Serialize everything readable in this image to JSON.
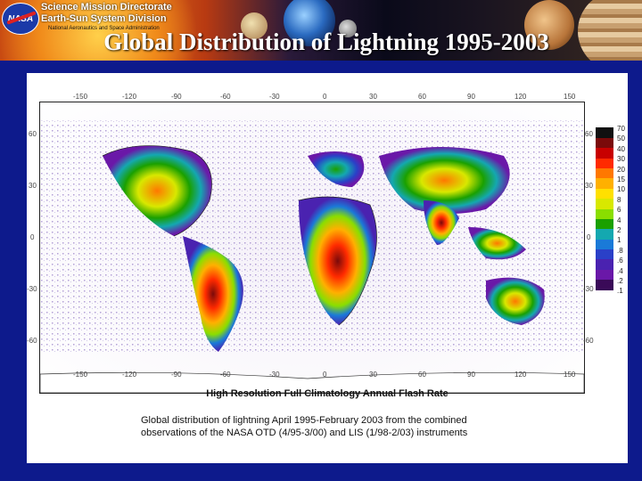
{
  "header": {
    "directorate": "Science Mission Directorate",
    "division": "Earth-Sun System Division",
    "agency": "National Aeronautics and Space Administration",
    "logo_text": "NASA",
    "title": "Global Distribution of Lightning 1995-2003"
  },
  "map": {
    "x_ticks_top": [
      "-150",
      "-120",
      "-90",
      "-60",
      "-30",
      "0",
      "30",
      "60",
      "90",
      "120",
      "150"
    ],
    "x_ticks_bottom": [
      "-150",
      "-120",
      "-90",
      "-60",
      "-30",
      "0",
      "30",
      "60",
      "90",
      "120",
      "150"
    ],
    "y_ticks_left": [
      "60",
      "30",
      "0",
      "-30",
      "-60"
    ],
    "y_ticks_right": [
      "60",
      "30",
      "0",
      "-30",
      "-60"
    ],
    "colorbar_labels": [
      "70",
      "50",
      "40",
      "30",
      "20",
      "15",
      "10",
      "8",
      "6",
      "4",
      "2",
      "1",
      ".8",
      ".6",
      ".4",
      ".2",
      ".1"
    ],
    "colorbar_colors": [
      "#ffffff",
      "#101010",
      "#7a0a0a",
      "#c80000",
      "#ff2a00",
      "#ff7800",
      "#ffb000",
      "#ffe000",
      "#d8e800",
      "#8ade00",
      "#1aa000",
      "#14a8b0",
      "#1a7ad8",
      "#2a40c8",
      "#4a22b0",
      "#6a18a8",
      "#3a0a58"
    ],
    "caption_title": "High Resolution Full Climatology Annual Flash Rate",
    "caption_line1": "Global distribution of lightning April 1995-February 2003 from the combined",
    "caption_line2": "observations of the NASA OTD (4/95-3/00) and LIS (1/98-2/03) instruments"
  }
}
